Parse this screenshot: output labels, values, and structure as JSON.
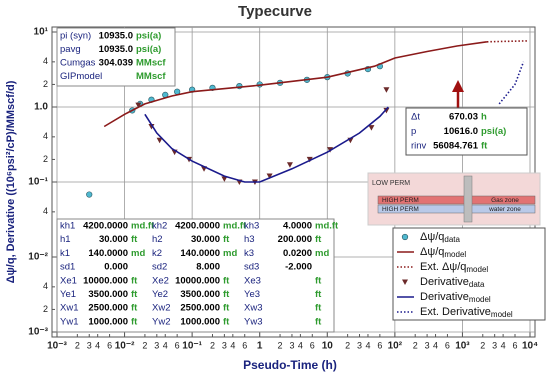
{
  "chart_data": {
    "type": "line",
    "title": "Typecurve",
    "x_label": "Pseudo-Time (h)",
    "y_label": "Δψ/q, Derivative ((10⁶psi²/cP)/MMscf/d)",
    "log_x": true,
    "log_y": true,
    "grid": true,
    "xlim": [
      0.001,
      10000
    ],
    "ylim": [
      0.001,
      10
    ],
    "xticks": [
      {
        "value": 0.001,
        "label": "10⁻³"
      },
      {
        "value": 0.002,
        "label": "2"
      },
      {
        "value": 0.003,
        "label": "3"
      },
      {
        "value": 0.004,
        "label": "4"
      },
      {
        "value": 0.006,
        "label": "6"
      },
      {
        "value": 0.01,
        "label": "10⁻²"
      },
      {
        "value": 0.02,
        "label": "2"
      },
      {
        "value": 0.03,
        "label": "3"
      },
      {
        "value": 0.04,
        "label": "4"
      },
      {
        "value": 0.06,
        "label": "6"
      },
      {
        "value": 0.1,
        "label": "10⁻¹"
      },
      {
        "value": 0.2,
        "label": "2"
      },
      {
        "value": 0.3,
        "label": "3"
      },
      {
        "value": 0.4,
        "label": "4"
      },
      {
        "value": 0.6,
        "label": "6"
      },
      1,
      2,
      3,
      4,
      6,
      10,
      {
        "value": 20,
        "label": "2"
      },
      {
        "value": 30,
        "label": "3"
      },
      {
        "value": 40,
        "label": "4"
      },
      {
        "value": 60,
        "label": "6"
      },
      {
        "value": 100,
        "label": "10²"
      },
      {
        "value": 200,
        "label": "2"
      },
      {
        "value": 300,
        "label": "3"
      },
      {
        "value": 400,
        "label": "4"
      },
      {
        "value": 600,
        "label": "6"
      },
      {
        "value": 1000,
        "label": "10³"
      },
      {
        "value": 2000,
        "label": "2"
      },
      {
        "value": 3000,
        "label": "3"
      },
      {
        "value": 4000,
        "label": "4"
      },
      {
        "value": 6000,
        "label": "6"
      },
      {
        "value": 10000,
        "label": "10⁴"
      }
    ],
    "yticks": [
      {
        "value": 10,
        "label": "10¹"
      },
      4,
      2,
      {
        "value": 1,
        "label": "1.0"
      },
      {
        "value": 0.4,
        "label": "4"
      },
      {
        "value": 0.2,
        "label": "2"
      },
      {
        "value": 0.1,
        "label": "10⁻¹"
      },
      {
        "value": 0.04,
        "label": "4"
      },
      {
        "value": 0.01,
        "label": "10⁻²"
      },
      {
        "value": 0.004,
        "label": "4"
      },
      {
        "value": 0.002,
        "label": "2"
      },
      {
        "value": 0.001,
        "label": "10⁻³"
      }
    ],
    "series": [
      {
        "name": "Δψ/q",
        "name_sub": "data",
        "color": "#4fb8cf",
        "style": "circle",
        "x": [
          0.003,
          0.013,
          0.017,
          0.025,
          0.04,
          0.06,
          0.1,
          0.2,
          0.5,
          1,
          2,
          5,
          10,
          20,
          40,
          60
        ],
        "values": [
          0.068,
          0.9,
          1.1,
          1.25,
          1.45,
          1.6,
          1.7,
          1.8,
          1.9,
          2.0,
          2.1,
          2.3,
          2.5,
          2.8,
          3.2,
          3.5
        ]
      },
      {
        "name": "Δψ/q",
        "name_sub": "model",
        "color": "#8b1a1a",
        "style": "solid",
        "x": [
          0.005,
          0.01,
          0.02,
          0.05,
          0.1,
          1,
          10,
          50,
          100,
          300,
          830,
          2300
        ],
        "values": [
          0.55,
          0.8,
          1.1,
          1.4,
          1.6,
          1.95,
          2.5,
          3.5,
          4.5,
          5.5,
          6.5,
          7.4
        ]
      },
      {
        "name": "Ext. Δψ/q",
        "name_sub": "model",
        "color": "#8b1a1a",
        "style": "dotted",
        "x": [
          2300,
          4000,
          9000
        ],
        "values": [
          7.4,
          7.5,
          7.6
        ]
      },
      {
        "name": "Derivative",
        "name_sub": "data",
        "color": "#6b2a2a",
        "style": "triangle",
        "x": [
          0.016,
          0.025,
          0.033,
          0.055,
          0.09,
          0.15,
          0.3,
          0.5,
          0.85,
          1.4,
          2.8,
          5.5,
          11,
          22,
          45,
          75,
          75
        ],
        "values": [
          1.06,
          0.55,
          0.36,
          0.25,
          0.2,
          0.15,
          0.11,
          0.1,
          0.1,
          0.12,
          0.17,
          0.2,
          0.27,
          0.36,
          0.53,
          0.9,
          1.7
        ]
      },
      {
        "name": "Derivative",
        "name_sub": "model",
        "color": "#1a1a8c",
        "style": "solid",
        "x": [
          0.02,
          0.03,
          0.05,
          0.1,
          0.3,
          0.6,
          1,
          3,
          10,
          30,
          60,
          80
        ],
        "values": [
          0.8,
          0.45,
          0.28,
          0.19,
          0.12,
          0.1,
          0.1,
          0.15,
          0.25,
          0.45,
          0.75,
          1.0
        ]
      },
      {
        "name": "Ext. Derivative",
        "name_sub": "model",
        "color": "#1a1a8c",
        "style": "dotted",
        "x": [
          3500,
          6000,
          8000
        ],
        "values": [
          1.1,
          2,
          4
        ]
      }
    ],
    "param_box": [
      {
        "label": "pi (syn)",
        "value": "10935.0",
        "unit": "psi(a)"
      },
      {
        "label": "pavg",
        "value": "10935.0",
        "unit": "psi(a)"
      },
      {
        "label": "Cumgas",
        "value": "304.039",
        "unit": "MMscf"
      },
      {
        "label": "GIPmodel",
        "unit": "MMscf"
      }
    ],
    "cursor_box": [
      {
        "label": "Δt",
        "value": "670.03",
        "unit": "h"
      },
      {
        "label": "p",
        "value": "10616.0",
        "unit": "psi(a)"
      },
      {
        "label": "rinv",
        "value": "56084.761",
        "unit": "ft"
      }
    ],
    "model_table": [
      [
        {
          "label": "kh1",
          "value": "4200.0000",
          "unit": "md.ft"
        },
        {
          "label": "kh2",
          "value": "4200.0000",
          "unit": "md.ft"
        },
        {
          "label": "kh3",
          "value": "4.0000",
          "unit": "md.ft"
        }
      ],
      [
        {
          "label": "h1",
          "value": "30.000",
          "unit": "ft"
        },
        {
          "label": "h2",
          "value": "30.000",
          "unit": "ft"
        },
        {
          "label": "h3",
          "value": "200.000",
          "unit": "ft"
        }
      ],
      [
        {
          "label": "k1",
          "value": "140.0000",
          "unit": "md"
        },
        {
          "label": "k2",
          "value": "140.0000",
          "unit": "md"
        },
        {
          "label": "k3",
          "value": "0.0200",
          "unit": "md"
        }
      ],
      [
        {
          "label": "sd1",
          "value": "0.000"
        },
        {
          "label": "sd2",
          "value": "8.000"
        },
        {
          "label": "sd3",
          "value": "-2.000"
        }
      ],
      [
        {
          "label": "Xe1",
          "value": "10000.000",
          "unit": "ft"
        },
        {
          "label": "Xe2",
          "value": "10000.000",
          "unit": "ft"
        },
        {
          "label": "Xe3",
          "unit": "ft"
        }
      ],
      [
        {
          "label": "Ye1",
          "value": "3500.000",
          "unit": "ft"
        },
        {
          "label": "Ye2",
          "value": "3500.000",
          "unit": "ft"
        },
        {
          "label": "Ye3",
          "unit": "ft"
        }
      ],
      [
        {
          "label": "Xw1",
          "value": "2500.000",
          "unit": "ft"
        },
        {
          "label": "Xw2",
          "value": "2500.000",
          "unit": "ft"
        },
        {
          "label": "Xw3",
          "unit": "ft"
        }
      ],
      [
        {
          "label": "Yw1",
          "value": "1000.000",
          "unit": "ft"
        },
        {
          "label": "Yw2",
          "value": "1000.000",
          "unit": "ft"
        },
        {
          "label": "Yw3",
          "unit": "ft"
        }
      ]
    ],
    "inset": {
      "title": "LOW PERM",
      "layers": [
        {
          "left": "HIGH PERM",
          "right": "Gas zone"
        },
        {
          "left": "HIGH PERM",
          "right": "water zone"
        }
      ]
    }
  }
}
